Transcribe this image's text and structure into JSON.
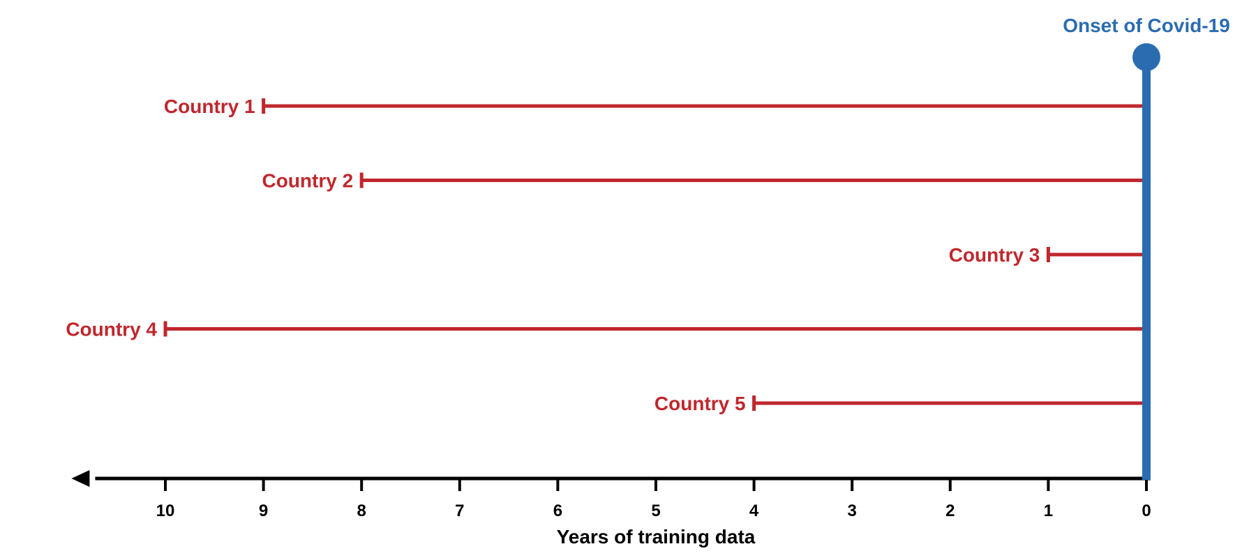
{
  "chart_data": {
    "type": "bar",
    "orientation": "horizontal",
    "xlabel": "Years of training data",
    "x_direction": "reversed",
    "xlim": [
      0,
      11
    ],
    "xticks": [
      10,
      9,
      8,
      7,
      6,
      5,
      4,
      3,
      2,
      1,
      0
    ],
    "categories": [
      "Country 1",
      "Country 2",
      "Country 3",
      "Country 4",
      "Country 5"
    ],
    "values": [
      9,
      8,
      1,
      10,
      4
    ],
    "reference_line": {
      "x": 0,
      "label": "Onset of Covid-19"
    },
    "colors": {
      "bars": "#c0272d",
      "reference": "#2b6cb0",
      "axis": "#000000"
    }
  }
}
